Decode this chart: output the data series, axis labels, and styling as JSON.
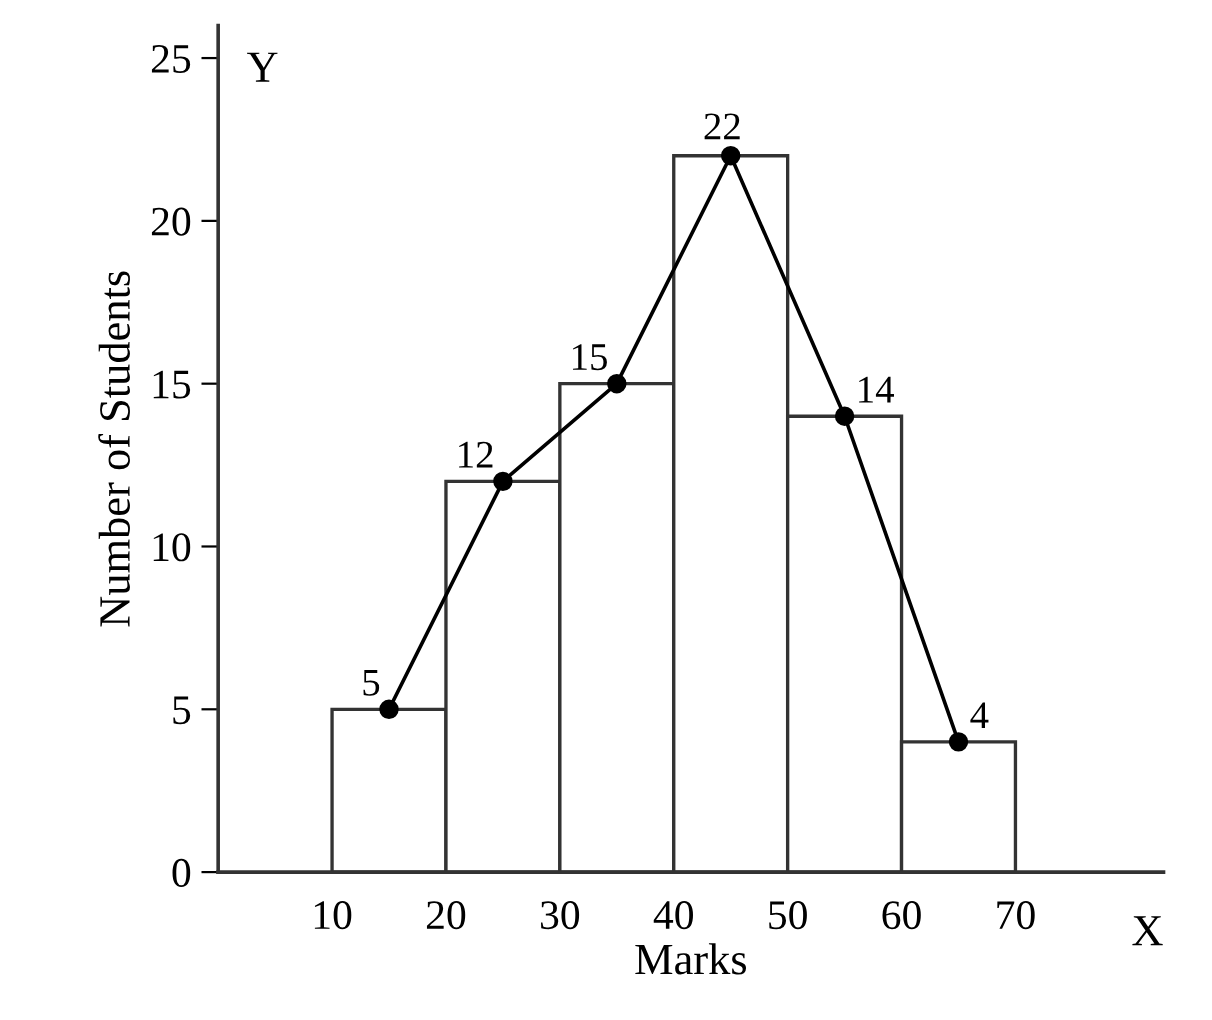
{
  "chart_data": {
    "type": "histogram",
    "xlabel": "Marks",
    "ylabel": "Number of Students",
    "annotations": [
      "Y",
      "X"
    ],
    "series": [
      {
        "bins": [
          10,
          20,
          30,
          40,
          50,
          60,
          70
        ],
        "values": [
          5,
          12,
          15,
          22,
          14,
          4
        ],
        "color": "#ffffff"
      },
      {
        "type": "line",
        "x": [
          15,
          25,
          35,
          45,
          55,
          65
        ],
        "values": [
          5,
          12,
          15,
          22,
          14,
          4
        ],
        "color": "#000000",
        "value_labels": [
          "5",
          "12",
          "15",
          "22",
          "14",
          "4"
        ]
      }
    ],
    "marker": "circle",
    "grid": false,
    "xlim": [
      0,
      83
    ],
    "ylim": [
      0,
      26
    ],
    "xticks": [
      10,
      20,
      30,
      40,
      50,
      60,
      70
    ],
    "yticks": [
      0,
      5,
      10,
      15,
      20,
      25
    ]
  }
}
